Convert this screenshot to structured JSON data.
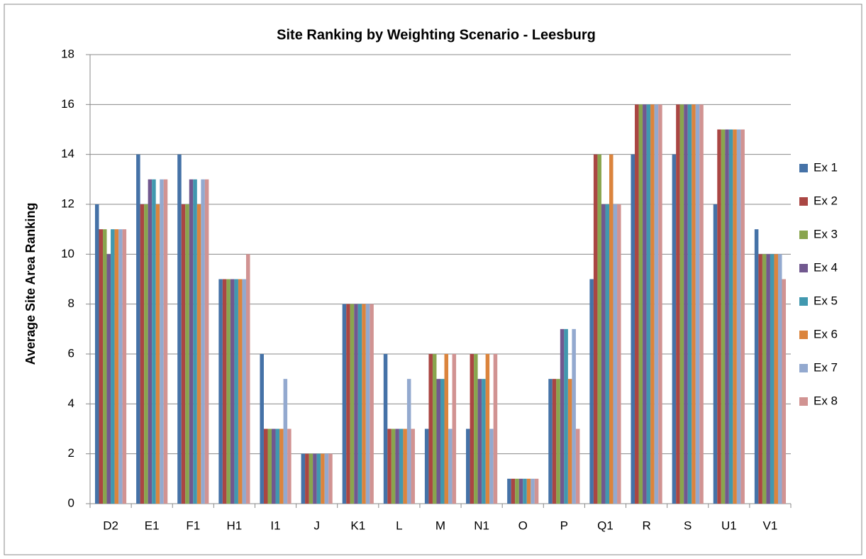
{
  "chart_data": {
    "type": "bar",
    "title": "Site Ranking by Weighting Scenario - Leesburg",
    "y_label": "Average Site Area Ranking",
    "categories": [
      "D2",
      "E1",
      "F1",
      "H1",
      "I1",
      "J",
      "K1",
      "L",
      "M",
      "N1",
      "O",
      "P",
      "Q1",
      "R",
      "S",
      "U1",
      "V1"
    ],
    "series": [
      {
        "name": "Ex 1",
        "color": "#4572a7",
        "values": [
          12,
          14,
          14,
          9,
          6,
          2,
          8,
          6,
          3,
          3,
          1,
          5,
          9,
          14,
          14,
          12,
          11
        ]
      },
      {
        "name": "Ex 2",
        "color": "#aa4643",
        "values": [
          11,
          12,
          12,
          9,
          3,
          2,
          8,
          3,
          6,
          6,
          1,
          5,
          14,
          16,
          16,
          15,
          10
        ]
      },
      {
        "name": "Ex 3",
        "color": "#89a54e",
        "values": [
          11,
          12,
          12,
          9,
          3,
          2,
          8,
          3,
          6,
          6,
          1,
          5,
          14,
          16,
          16,
          15,
          10
        ]
      },
      {
        "name": "Ex 4",
        "color": "#71588f",
        "values": [
          10,
          13,
          13,
          9,
          3,
          2,
          8,
          3,
          5,
          5,
          1,
          7,
          12,
          16,
          16,
          15,
          10
        ]
      },
      {
        "name": "Ex 5",
        "color": "#4198af",
        "values": [
          11,
          13,
          13,
          9,
          3,
          2,
          8,
          3,
          5,
          5,
          1,
          7,
          12,
          16,
          16,
          15,
          10
        ]
      },
      {
        "name": "Ex 6",
        "color": "#db843d",
        "values": [
          11,
          12,
          12,
          9,
          3,
          2,
          8,
          3,
          6,
          6,
          1,
          5,
          14,
          16,
          16,
          15,
          10
        ]
      },
      {
        "name": "Ex 7",
        "color": "#93a9cf",
        "values": [
          11,
          13,
          13,
          9,
          5,
          2,
          8,
          5,
          3,
          3,
          1,
          7,
          12,
          16,
          16,
          15,
          10
        ]
      },
      {
        "name": "Ex 8",
        "color": "#d19392",
        "values": [
          11,
          13,
          13,
          10,
          3,
          2,
          8,
          3,
          6,
          6,
          1,
          3,
          12,
          16,
          16,
          15,
          9
        ]
      }
    ],
    "ylim": [
      0,
      18
    ],
    "yticks": [
      0,
      2,
      4,
      6,
      8,
      10,
      12,
      14,
      16,
      18
    ],
    "grid": true,
    "legend": "right"
  }
}
